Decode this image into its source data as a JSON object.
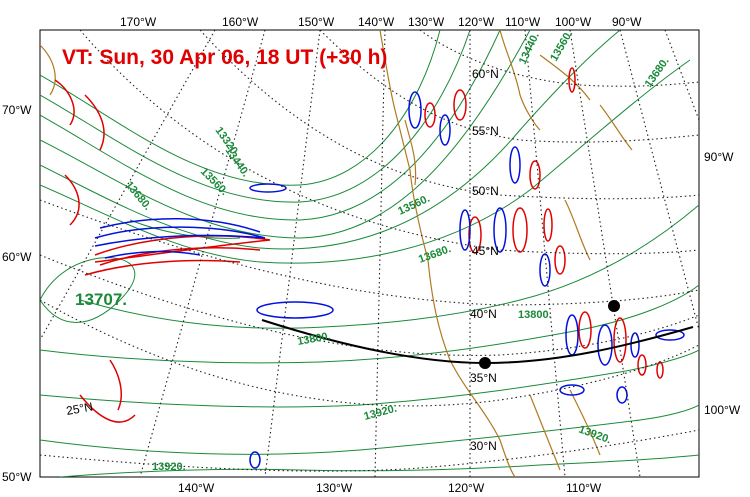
{
  "title": "VT:  Sun, 30 Apr 06, 18 UT (+30 h)",
  "colors": {
    "title": "#e00000",
    "height_contour": "#1a8a3a",
    "coastline": "#b07a20",
    "positive_contour": "#e00000",
    "negative_contour": "#0010e0",
    "graticule": "#222222",
    "cross_section": "#000000"
  },
  "top_lon_labels": [
    "170°W",
    "160°W",
    "150°W",
    "140°W",
    "130°W",
    "120°W",
    "110°W",
    "100°W",
    "90°W"
  ],
  "bottom_lon_labels": [
    "140°W",
    "130°W",
    "120°W",
    "110°W"
  ],
  "left_labels": [
    "70°W",
    "60°W",
    "50°W"
  ],
  "right_labels": [
    "90°W",
    "100°W"
  ],
  "lat_labels": [
    "60°N",
    "55°N",
    "50°N",
    "45°N",
    "40°N",
    "35°N",
    "30°N",
    "25°N"
  ],
  "contour_labels": [
    "13320.",
    "13440.",
    "13560.",
    "13680.",
    "13560.",
    "13680.",
    "13440.",
    "13560.",
    "13680.",
    "13800.",
    "13800.",
    "13920.",
    "13920.",
    "13920."
  ],
  "extremum_label": "13707."
}
